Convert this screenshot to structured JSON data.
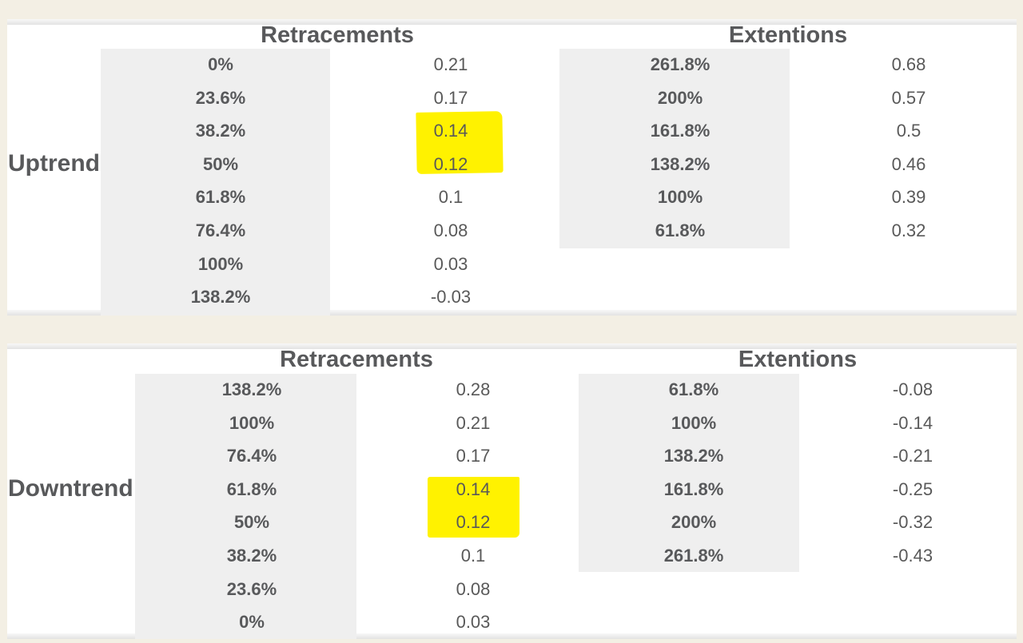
{
  "uptrend": {
    "label": "Uptrend",
    "retracements": {
      "header": "Retracements",
      "rows": [
        {
          "level": "0%",
          "value": "0.21"
        },
        {
          "level": "23.6%",
          "value": "0.17"
        },
        {
          "level": "38.2%",
          "value": "0.14",
          "highlighted": true
        },
        {
          "level": "50%",
          "value": "0.12",
          "highlighted": true
        },
        {
          "level": "61.8%",
          "value": "0.1"
        },
        {
          "level": "76.4%",
          "value": "0.08"
        },
        {
          "level": "100%",
          "value": "0.03"
        },
        {
          "level": "138.2%",
          "value": "-0.03"
        }
      ]
    },
    "extensions": {
      "header": "Extentions",
      "rows": [
        {
          "level": "261.8%",
          "value": "0.68"
        },
        {
          "level": "200%",
          "value": "0.57"
        },
        {
          "level": "161.8%",
          "value": "0.5"
        },
        {
          "level": "138.2%",
          "value": "0.46"
        },
        {
          "level": "100%",
          "value": "0.39"
        },
        {
          "level": "61.8%",
          "value": "0.32"
        }
      ]
    }
  },
  "downtrend": {
    "label": "Downtrend",
    "retracements": {
      "header": "Retracements",
      "rows": [
        {
          "level": "138.2%",
          "value": "0.28"
        },
        {
          "level": "100%",
          "value": "0.21"
        },
        {
          "level": "76.4%",
          "value": "0.17"
        },
        {
          "level": "61.8%",
          "value": "0.14",
          "highlighted": true
        },
        {
          "level": "50%",
          "value": "0.12",
          "highlighted": true
        },
        {
          "level": "38.2%",
          "value": "0.1"
        },
        {
          "level": "23.6%",
          "value": "0.08"
        },
        {
          "level": "0%",
          "value": "0.03"
        }
      ]
    },
    "extensions": {
      "header": "Extentions",
      "rows": [
        {
          "level": "61.8%",
          "value": "-0.08"
        },
        {
          "level": "100%",
          "value": "-0.14"
        },
        {
          "level": "138.2%",
          "value": "-0.21"
        },
        {
          "level": "161.8%",
          "value": "-0.25"
        },
        {
          "level": "200%",
          "value": "-0.32"
        },
        {
          "level": "261.8%",
          "value": "-0.43"
        }
      ]
    }
  },
  "colors": {
    "highlight": "#fff200",
    "shade": "#efefef",
    "text": "#58595b",
    "page_background": "#f3efe4"
  }
}
